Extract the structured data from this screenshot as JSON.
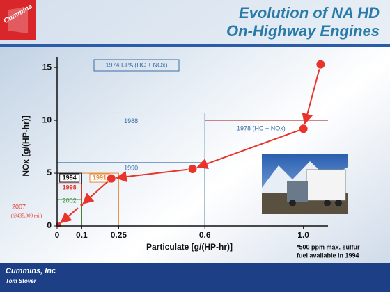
{
  "header": {
    "logo": "Cummins",
    "title_line1": "Evolution of NA HD",
    "title_line2": "On-Highway Engines"
  },
  "chart_data": {
    "type": "scatter",
    "x_label": "Particulate [g/(HP-hr)]",
    "y_label": "NOx [g/(HP-hr)]",
    "xlim": [
      0,
      1.1
    ],
    "ylim": [
      0,
      16
    ],
    "xticks": [
      0,
      0.1,
      0.25,
      0.6,
      {
        "value": 1,
        "label": "1.0"
      }
    ],
    "yticks": [
      0,
      5,
      10,
      15
    ],
    "x": [
      1.07,
      1.0,
      0.55,
      0.22,
      0.1,
      0.01
    ],
    "values": [
      15.3,
      9.2,
      5.4,
      4.5,
      2.0,
      0.2
    ],
    "color": "#e8342a",
    "standards": [
      {
        "label": "1988",
        "pm": 0.6,
        "nox": 10.7,
        "color": "#3a6ea5"
      },
      {
        "label": "1990",
        "pm": 0.6,
        "nox": 6,
        "color": "#3a6ea5"
      },
      {
        "label": "1991",
        "pm": 0.25,
        "nox": 5,
        "color": "#e58a3a"
      },
      {
        "label": "1994",
        "pm": 0.1,
        "nox": 5,
        "color": "#111111"
      },
      {
        "label": "1998",
        "pm": 0.1,
        "nox": 4,
        "color": "#e8342a"
      },
      {
        "label": "2002",
        "pm": 0.1,
        "nox": 2.5,
        "color": "#3a8a3a"
      },
      {
        "label": "2007",
        "pm": 0.01,
        "nox": 0.2,
        "color": "#e8342a"
      }
    ],
    "standard_2007_note": "(@435,000 mi.)",
    "epa_1974_label": "1974 EPA (HC + NOx)",
    "line_1978": {
      "label": "1978 (HC + NOx)",
      "nox": 10,
      "color": "#b04040"
    },
    "footnote_line1": "*500 ppm  max. sulfur",
    "footnote_line2": "fuel available in 1994"
  },
  "footer": {
    "company": "Cummins, Inc",
    "author": "Tom Stover"
  }
}
